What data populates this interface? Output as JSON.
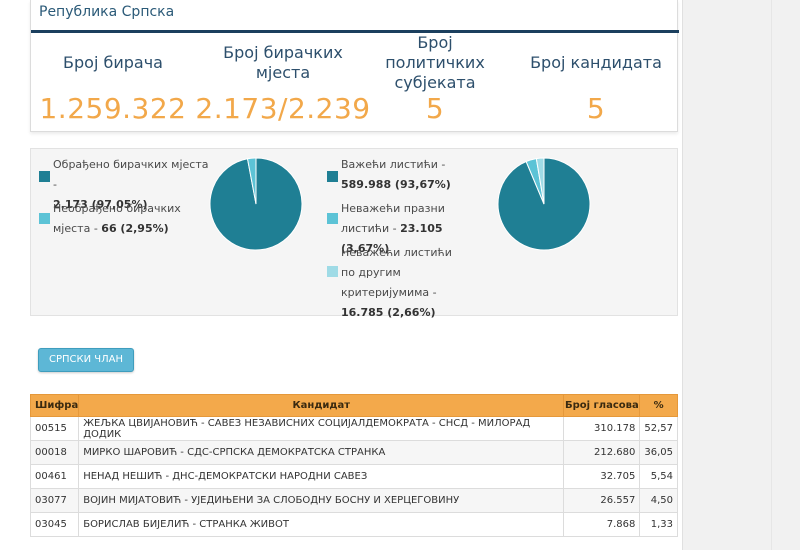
{
  "region_title": "Република Српска",
  "stats": [
    {
      "label": "Број бирача",
      "value": "1.259.322"
    },
    {
      "label": "Број бирачких мјеста",
      "value": "2.173/2.239"
    },
    {
      "label": "Број политичких субјеката",
      "value": "5"
    },
    {
      "label": "Број кандидата",
      "value": "5"
    }
  ],
  "colors": {
    "dark": "#1f7f94",
    "light": "#5cc3d6",
    "lighter": "#9fdbe6",
    "accent": "#f2a84a"
  },
  "pie1": {
    "legend": [
      {
        "label": "Обрађено бирачких мјеста -",
        "value": "2.173 (97,05%)",
        "color": "#1f7f94"
      },
      {
        "label": "Необрађено бирачких мјеста -",
        "value": "66 (2,95%)",
        "color": "#5cc3d6"
      }
    ],
    "slices": [
      97.05,
      2.95
    ]
  },
  "pie2": {
    "legend": [
      {
        "label": "Важећи листићи -",
        "value": "589.988 (93,67%)",
        "color": "#1f7f94"
      },
      {
        "label": "Неважећи празни листићи -",
        "value": "23.105 (3,67%)",
        "color": "#5cc3d6"
      },
      {
        "label": "Неважећи листићи по другим критеријумима -",
        "value": "16.785 (2,66%)",
        "color": "#9fdbe6"
      }
    ],
    "slices": [
      93.67,
      3.67,
      2.66
    ]
  },
  "tab_label": "СРПСКИ ЧЛАН",
  "table": {
    "headers": [
      "Шифра",
      "Кандидат",
      "Број гласова",
      "%"
    ],
    "rows": [
      {
        "code": "00515",
        "name": "ЖЕЉКА ЦВИЈАНОВИЋ - САВЕЗ НЕЗАВИСНИХ СОЦИЈАЛДЕМОКРАТА - СНСД - МИЛОРАД ДОДИК",
        "votes": "310.178",
        "pct": "52,57"
      },
      {
        "code": "00018",
        "name": "МИРКО ШАРОВИЋ - СДС-СРПСКА ДЕМОКРАТСКА СТРАНКА",
        "votes": "212.680",
        "pct": "36,05"
      },
      {
        "code": "00461",
        "name": "НЕНАД НЕШИЋ - ДНС-ДЕМОКРАТСКИ НАРОДНИ САВЕЗ",
        "votes": "32.705",
        "pct": "5,54"
      },
      {
        "code": "03077",
        "name": "ВОЈИН МИЈАТОВИЋ - УЈЕДИЊЕНИ ЗА СЛОБОДНУ БОСНУ И ХЕРЦЕГОВИНУ",
        "votes": "26.557",
        "pct": "4,50"
      },
      {
        "code": "03045",
        "name": "БОРИСЛАВ БИЈЕЛИЋ - СТРАНКА ЖИВОТ",
        "votes": "7.868",
        "pct": "1,33"
      }
    ]
  }
}
